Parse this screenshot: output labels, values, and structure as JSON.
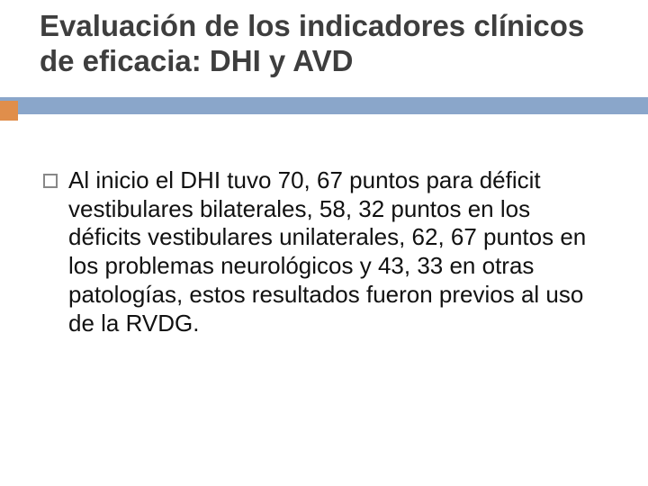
{
  "title": "Evaluación de los indicadores clínicos de eficacia: DHI y AVD",
  "body": {
    "items": [
      {
        "text": "Al inicio el DHI tuvo 70, 67 puntos para déficit vestibulares bilaterales, 58, 32 puntos en los déficits vestibulares unilaterales,  62, 67 puntos en los problemas neurológicos y 43, 33 en otras patologías, estos resultados fueron previos al uso de la RVDG."
      }
    ]
  },
  "style": {
    "title_color": "#3e3e3e",
    "title_fontsize": 33,
    "title_weight": 700,
    "body_color": "#111111",
    "body_fontsize": 26,
    "body_lineheight": 1.22,
    "accent_bar_color": "#8aa6ca",
    "accent_square_color": "#e08e4b",
    "bullet_border_color": "#888888",
    "background_color": "#ffffff"
  }
}
